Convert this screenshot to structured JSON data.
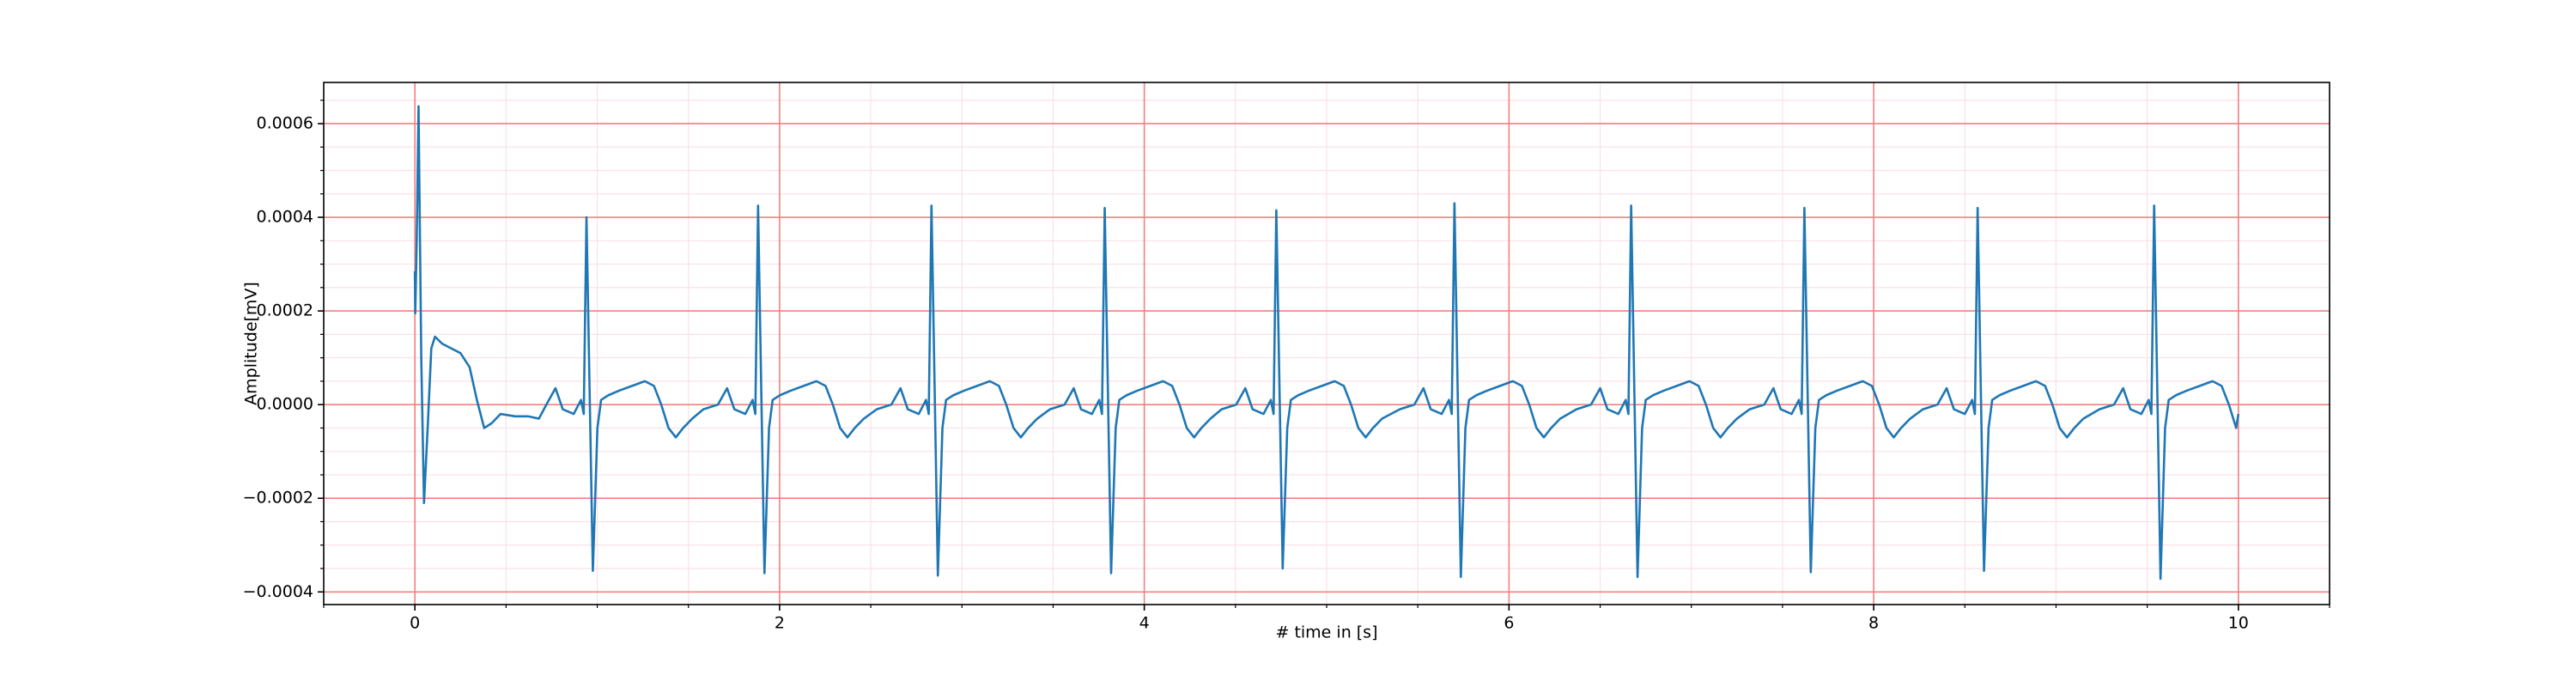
{
  "chart_data": {
    "type": "line",
    "xlabel": "# time in [s]",
    "ylabel": "Amplitude[mV]",
    "color": "#1f77b4",
    "grid": true,
    "major_grid_color": "#f28080",
    "minor_grid_color": "#fbe0e6",
    "xlim": [
      -0.5,
      10.5
    ],
    "ylim": [
      -0.000427,
      0.000688
    ],
    "xticks": [
      0,
      2,
      4,
      6,
      8,
      10
    ],
    "yticks": [
      {
        "value": -0.0004,
        "label": "−0.0004"
      },
      {
        "value": -0.0002,
        "label": "−0.0002"
      },
      {
        "value": 0,
        "label": "0.0000"
      },
      {
        "value": 0.0002,
        "label": "0.0002"
      },
      {
        "value": 0.0004,
        "label": "0.0004"
      },
      {
        "value": 0.0006,
        "label": "0.0006"
      }
    ],
    "xminorticks": [
      -0.5,
      0.5,
      1,
      1.5,
      2.5,
      3,
      3.5,
      4.5,
      5,
      5.5,
      6.5,
      7,
      7.5,
      8.5,
      9,
      9.5,
      10.5
    ],
    "yminorticks": [
      -0.00035,
      -0.0003,
      -0.00025,
      -0.00015,
      -0.0001,
      -5e-05,
      5e-05,
      0.0001,
      0.00015,
      0.00025,
      0.0003,
      0.00035,
      0.00045,
      0.0005,
      0.00055,
      0.00065
    ],
    "x": [
      0,
      0.002,
      0.01,
      0.02,
      0.035,
      0.05,
      0.07,
      0.09,
      0.11,
      0.15,
      0.2,
      0.25,
      0.3,
      0.34,
      0.38,
      0.42,
      0.47,
      0.55,
      0.62,
      0.68,
      0.721,
      0.771,
      0.811,
      0.871,
      0.911,
      0.926,
      0.941,
      0.976,
      1.001,
      1.021,
      1.061,
      1.121,
      1.191,
      1.261,
      1.311,
      1.351,
      1.391,
      1.431,
      1.471,
      1.521,
      1.582,
      1.662,
      1.712,
      1.752,
      1.812,
      1.852,
      1.867,
      1.882,
      1.917,
      1.942,
      1.962,
      2.002,
      2.062,
      2.132,
      2.202,
      2.252,
      2.292,
      2.332,
      2.372,
      2.412,
      2.462,
      2.533,
      2.613,
      2.663,
      2.703,
      2.763,
      2.803,
      2.818,
      2.833,
      2.868,
      2.893,
      2.913,
      2.953,
      3.013,
      3.083,
      3.153,
      3.203,
      3.243,
      3.283,
      3.323,
      3.363,
      3.413,
      3.483,
      3.563,
      3.613,
      3.653,
      3.713,
      3.753,
      3.768,
      3.783,
      3.818,
      3.843,
      3.863,
      3.903,
      3.963,
      4.033,
      4.103,
      4.153,
      4.193,
      4.233,
      4.273,
      4.313,
      4.363,
      4.424,
      4.504,
      4.554,
      4.594,
      4.654,
      4.694,
      4.709,
      4.724,
      4.759,
      4.784,
      4.804,
      4.844,
      4.904,
      4.974,
      5.044,
      5.094,
      5.134,
      5.174,
      5.214,
      5.254,
      5.304,
      5.401,
      5.481,
      5.531,
      5.571,
      5.631,
      5.671,
      5.686,
      5.701,
      5.736,
      5.761,
      5.781,
      5.821,
      5.881,
      5.951,
      6.021,
      6.071,
      6.111,
      6.151,
      6.191,
      6.231,
      6.281,
      6.37,
      6.45,
      6.5,
      6.54,
      6.6,
      6.64,
      6.655,
      6.67,
      6.705,
      6.73,
      6.75,
      6.79,
      6.85,
      6.92,
      6.99,
      7.04,
      7.08,
      7.12,
      7.16,
      7.2,
      7.25,
      7.32,
      7.4,
      7.45,
      7.49,
      7.55,
      7.59,
      7.605,
      7.62,
      7.655,
      7.68,
      7.7,
      7.74,
      7.8,
      7.87,
      7.94,
      7.99,
      8.03,
      8.07,
      8.11,
      8.15,
      8.2,
      8.27,
      8.35,
      8.4,
      8.44,
      8.5,
      8.54,
      8.555,
      8.57,
      8.605,
      8.63,
      8.65,
      8.69,
      8.75,
      8.82,
      8.89,
      8.94,
      8.98,
      9.02,
      9.06,
      9.1,
      9.15,
      9.238,
      9.318,
      9.368,
      9.408,
      9.468,
      9.508,
      9.523,
      9.538,
      9.573,
      9.598,
      9.618,
      9.658,
      9.718,
      9.788,
      9.858,
      9.908,
      9.948,
      9.988,
      10.0
    ],
    "values": [
      0.000285,
      0.000195,
      0.00035,
      0.000637,
      0.0001,
      -0.00021,
      -5e-05,
      0.00012,
      0.000145,
      0.00013,
      0.00012,
      0.00011,
      8e-05,
      1e-05,
      -5e-05,
      -4e-05,
      -2e-05,
      -2.5e-05,
      -2.5e-05,
      -3e-05,
      0,
      3.5e-05,
      -1e-05,
      -2e-05,
      1e-05,
      -2e-05,
      0.0004,
      -0.000355,
      -5e-05,
      1e-05,
      2e-05,
      3e-05,
      4e-05,
      5e-05,
      4e-05,
      0,
      -5e-05,
      -7e-05,
      -5e-05,
      -3e-05,
      -1e-05,
      0,
      3.5e-05,
      -1e-05,
      -2e-05,
      1e-05,
      -2e-05,
      0.000425,
      -0.00036,
      -5e-05,
      1e-05,
      2e-05,
      3e-05,
      4e-05,
      5e-05,
      4e-05,
      0,
      -5e-05,
      -7e-05,
      -5e-05,
      -3e-05,
      -1e-05,
      0,
      3.5e-05,
      -1e-05,
      -2e-05,
      1e-05,
      -2e-05,
      0.000425,
      -0.000365,
      -5e-05,
      1e-05,
      2e-05,
      3e-05,
      4e-05,
      5e-05,
      4e-05,
      0,
      -5e-05,
      -7e-05,
      -5e-05,
      -3e-05,
      -1e-05,
      0,
      3.5e-05,
      -1e-05,
      -2e-05,
      1e-05,
      -2e-05,
      0.00042,
      -0.00036,
      -5e-05,
      1e-05,
      2e-05,
      3e-05,
      4e-05,
      5e-05,
      4e-05,
      0,
      -5e-05,
      -7e-05,
      -5e-05,
      -3e-05,
      -1e-05,
      0,
      3.5e-05,
      -1e-05,
      -2e-05,
      1e-05,
      -2e-05,
      0.000415,
      -0.00035,
      -5e-05,
      1e-05,
      2e-05,
      3e-05,
      4e-05,
      5e-05,
      4e-05,
      0,
      -5e-05,
      -7e-05,
      -5e-05,
      -3e-05,
      -1e-05,
      0,
      3.5e-05,
      -1e-05,
      -2e-05,
      1e-05,
      -2e-05,
      0.00043,
      -0.000368,
      -5e-05,
      1e-05,
      2e-05,
      3e-05,
      4e-05,
      5e-05,
      4e-05,
      0,
      -5e-05,
      -7e-05,
      -5e-05,
      -3e-05,
      -1e-05,
      0,
      3.5e-05,
      -1e-05,
      -2e-05,
      1e-05,
      -2e-05,
      0.000425,
      -0.000368,
      -5e-05,
      1e-05,
      2e-05,
      3e-05,
      4e-05,
      5e-05,
      4e-05,
      0,
      -5e-05,
      -7e-05,
      -5e-05,
      -3e-05,
      -1e-05,
      0,
      3.5e-05,
      -1e-05,
      -2e-05,
      1e-05,
      -2e-05,
      0.00042,
      -0.000358,
      -5e-05,
      1e-05,
      2e-05,
      3e-05,
      4e-05,
      5e-05,
      4e-05,
      0,
      -5e-05,
      -7e-05,
      -5e-05,
      -3e-05,
      -1e-05,
      0,
      3.5e-05,
      -1e-05,
      -2e-05,
      1e-05,
      -2e-05,
      0.00042,
      -0.000355,
      -5e-05,
      1e-05,
      2e-05,
      3e-05,
      4e-05,
      5e-05,
      4e-05,
      0,
      -5e-05,
      -7e-05,
      -5e-05,
      -3e-05,
      -1e-05,
      0,
      3.5e-05,
      -1e-05,
      -2e-05,
      1e-05,
      -2e-05,
      0.000425,
      -0.000372,
      -5e-05,
      1e-05,
      2e-05,
      3e-05,
      4e-05,
      5e-05,
      4e-05,
      0,
      -5e-05,
      -2e-05
    ]
  }
}
